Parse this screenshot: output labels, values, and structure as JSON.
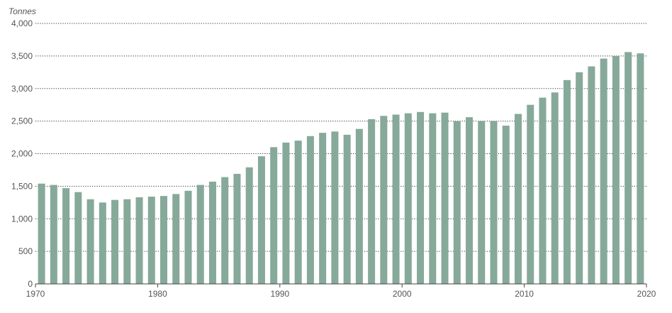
{
  "chart_data": {
    "type": "bar",
    "ylabel": "Tonnes",
    "xlabel": "",
    "title": "",
    "ylim": [
      0,
      4000
    ],
    "xlim": [
      1970,
      2020
    ],
    "y_ticks": [
      0,
      500,
      1000,
      1500,
      2000,
      2500,
      3000,
      3500,
      4000
    ],
    "y_tick_labels": [
      "0",
      "500",
      "1,000",
      "1,500",
      "2,000",
      "2,500",
      "3,000",
      "3,500",
      "4,000"
    ],
    "x_ticks": [
      1970,
      1980,
      1990,
      2000,
      2010,
      2020
    ],
    "x_tick_labels": [
      "1970",
      "1980",
      "1990",
      "2000",
      "2010",
      "2020"
    ],
    "grid": "horizontal dotted",
    "bar_color": "#86a99a",
    "categories": [
      1970,
      1971,
      1972,
      1973,
      1974,
      1975,
      1976,
      1977,
      1978,
      1979,
      1980,
      1981,
      1982,
      1983,
      1984,
      1985,
      1986,
      1987,
      1988,
      1989,
      1990,
      1991,
      1992,
      1993,
      1994,
      1995,
      1996,
      1997,
      1998,
      1999,
      2000,
      2001,
      2002,
      2003,
      2004,
      2005,
      2006,
      2007,
      2008,
      2009,
      2010,
      2011,
      2012,
      2013,
      2014,
      2015,
      2016,
      2017,
      2018,
      2019
    ],
    "values": [
      1540,
      1520,
      1470,
      1410,
      1300,
      1250,
      1290,
      1300,
      1330,
      1340,
      1350,
      1380,
      1430,
      1520,
      1570,
      1640,
      1690,
      1790,
      1960,
      2100,
      2170,
      2200,
      2270,
      2320,
      2340,
      2290,
      2380,
      2530,
      2580,
      2600,
      2620,
      2640,
      2620,
      2630,
      2500,
      2560,
      2500,
      2500,
      2430,
      2610,
      2750,
      2860,
      2940,
      3130,
      3250,
      3340,
      3460,
      3500,
      3560,
      3540
    ]
  }
}
